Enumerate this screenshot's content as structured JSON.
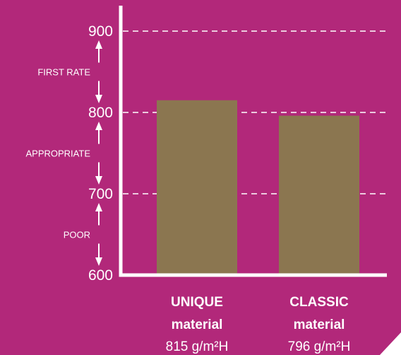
{
  "chart_data": {
    "type": "bar",
    "categories": [
      {
        "name": "UNIQUE",
        "sub": "material",
        "value_label": "815 g/m²H"
      },
      {
        "name": "CLASSIC",
        "sub": "material",
        "value_label": "796 g/m²H"
      }
    ],
    "values": [
      815,
      796
    ],
    "ylim": [
      600,
      900
    ],
    "yticks": [
      "600",
      "700",
      "800",
      "900"
    ],
    "gridlines": [
      700,
      800,
      900
    ],
    "bands": [
      {
        "label": "POOR",
        "from": 600,
        "to": 700
      },
      {
        "label": "APPROPRIATE",
        "from": 700,
        "to": 800
      },
      {
        "label": "FIRST RATE",
        "from": 800,
        "to": 900
      }
    ]
  },
  "colors": {
    "background": "#B2287A",
    "bar": "#8B7650",
    "axis": "#FFFFFF"
  }
}
